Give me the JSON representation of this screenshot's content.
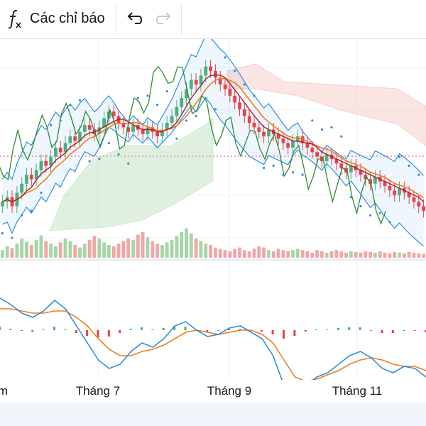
{
  "toolbar": {
    "indicators_label": "Các chỉ báo",
    "icons": [
      "function-fx-icon",
      "undo-icon",
      "redo-icon"
    ],
    "redo_enabled": false
  },
  "xaxis": {
    "labels": [
      "m",
      "Tháng 7",
      "Tháng 9",
      "Tháng 11"
    ]
  },
  "colors": {
    "up": "#4caf7d",
    "down": "#e8414a",
    "bb": "#2e8ee0",
    "ma_orange": "#f07d1a",
    "ma_red": "#b2182b",
    "lagging": "#2e8b2e",
    "psar": "#2e8ee0",
    "cloud_bull": "#a5d6a7",
    "cloud_bear": "#f5b7b1",
    "macd": "#2e8ee0",
    "signal": "#f07d1a"
  },
  "chart_data": {
    "type": "candlestick",
    "note_x": [
      "Tháng 7",
      "Tháng 9",
      "Tháng 11"
    ],
    "close": [
      66,
      68,
      64,
      70,
      74,
      78,
      76,
      80,
      84,
      82,
      86,
      90,
      88,
      92,
      95,
      93,
      97,
      100,
      98,
      96,
      99,
      103,
      106,
      104,
      101,
      99,
      97,
      100,
      98,
      96,
      99,
      97,
      95,
      98,
      101,
      104,
      108,
      112,
      116,
      120,
      118,
      122,
      126,
      124,
      121,
      118,
      116,
      113,
      110,
      107,
      104,
      101,
      99,
      97,
      95,
      98,
      96,
      94,
      92,
      90,
      93,
      95,
      92,
      90,
      88,
      86,
      84,
      87,
      85,
      83,
      81,
      79,
      82,
      80,
      78,
      76,
      74,
      77,
      75,
      73,
      71,
      69,
      72,
      70,
      68,
      66,
      64,
      62
    ],
    "volume": [
      12,
      18,
      15,
      22,
      30,
      25,
      20,
      28,
      35,
      26,
      22,
      18,
      24,
      30,
      26,
      20,
      16,
      22,
      28,
      34,
      30,
      24,
      20,
      18,
      22,
      26,
      30,
      28,
      36,
      40,
      32,
      26,
      22,
      20,
      24,
      28,
      34,
      40,
      46,
      38,
      30,
      26,
      22,
      20,
      16,
      14,
      12,
      10,
      14,
      16,
      12,
      10,
      14,
      18,
      16,
      12,
      10,
      14,
      12,
      10,
      12,
      14,
      12,
      10,
      8,
      12,
      10,
      8,
      10,
      12,
      10,
      8,
      10,
      9,
      8,
      10,
      9,
      8,
      10,
      8,
      7,
      9,
      8,
      7,
      9,
      8,
      7,
      6
    ],
    "macd": [
      1.5,
      1.2,
      0.8,
      0.6,
      0.9,
      1.4,
      1.0,
      0.2,
      -0.6,
      -1.4,
      -1.8,
      -1.6,
      -1.0,
      -0.6,
      -0.8,
      -0.4,
      0.2,
      0.4,
      0.0,
      -0.3,
      -0.2,
      0.1,
      0.2,
      -0.1,
      -0.4,
      -1.2,
      -2.6,
      -3.0,
      -2.6,
      -2.2,
      -2.0,
      -1.6,
      -1.2,
      -1.0,
      -1.3,
      -1.8,
      -2.0,
      -1.7,
      -1.8,
      -2.2
    ],
    "signal": [
      1.0,
      1.0,
      0.9,
      0.8,
      0.8,
      0.9,
      0.9,
      0.6,
      0.2,
      -0.4,
      -0.9,
      -1.2,
      -1.2,
      -1.0,
      -0.9,
      -0.7,
      -0.4,
      -0.1,
      0.0,
      -0.1,
      -0.2,
      -0.1,
      0.0,
      0.0,
      -0.2,
      -0.6,
      -1.4,
      -2.2,
      -2.4,
      -2.3,
      -2.1,
      -1.9,
      -1.6,
      -1.4,
      -1.3,
      -1.4,
      -1.6,
      -1.7,
      -1.7,
      -1.9
    ]
  }
}
